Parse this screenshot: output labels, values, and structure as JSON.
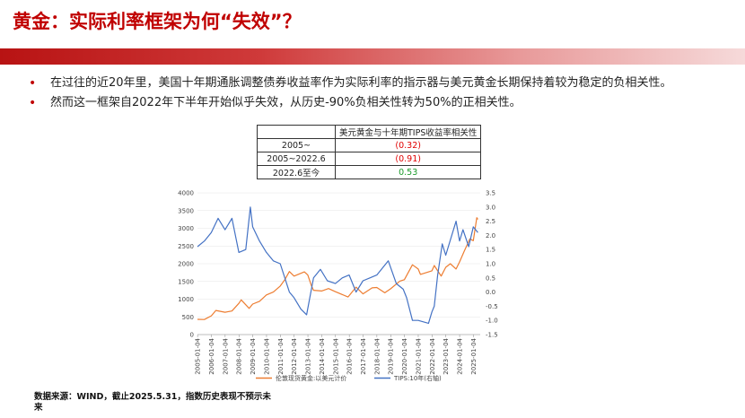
{
  "header": {
    "title": "黄金：实际利率框架为何“失效”？"
  },
  "bullets": [
    "在过往的近20年里，美国十年期通胀调整债券收益率作为实际利率的指示器与美元黄金长期保持着较为稳定的负相关性。",
    "然而这一框架自2022年下半年开始似乎失效，从历史-90%负相关性转为50%的正相关性。"
  ],
  "corr_table": {
    "header": "美元黄金与十年期TIPS收益率相关性",
    "rows": [
      {
        "period": "2005~",
        "value": "(0.32)",
        "sign": "neg"
      },
      {
        "period": "2005~2022.6",
        "value": "(0.91)",
        "sign": "neg"
      },
      {
        "period": "2022.6至今",
        "value": "0.53",
        "sign": "pos"
      }
    ]
  },
  "colors": {
    "accent": "#c00000",
    "gold_line": "#ed7d31",
    "tips_line": "#4472c4"
  },
  "chart_data": {
    "type": "line",
    "xlabel": "",
    "ylabel": "",
    "ylim_left": [
      0,
      4000
    ],
    "ylim_right": [
      -1.5,
      3.5
    ],
    "left_ticks": [
      "4000",
      "3500",
      "3000",
      "2500",
      "2000",
      "1500",
      "1000",
      "500",
      "0"
    ],
    "right_ticks": [
      "3.5",
      "3.0",
      "2.5",
      "2.0",
      "1.5",
      "1.0",
      "0.5",
      "0.0",
      "-0.5",
      "-1.0",
      "-1.5"
    ],
    "x_ticks": [
      "2005-01-04",
      "2006-01-04",
      "2007-01-04",
      "2008-01-04",
      "2009-01-04",
      "2010-01-04",
      "2011-01-04",
      "2012-01-04",
      "2013-01-04",
      "2014-01-04",
      "2015-01-04",
      "2016-01-04",
      "2017-01-04",
      "2018-01-04",
      "2019-01-04",
      "2020-01-04",
      "2021-01-04",
      "2022-01-04",
      "2023-01-04",
      "2024-01-04",
      "2025-01-04"
    ],
    "legend_position": "bottom",
    "series": [
      {
        "name": "伦敦现货黄金:以美元计价",
        "axis": "left",
        "x": [
          "2005-01",
          "2005-07",
          "2006-01",
          "2006-05",
          "2007-01",
          "2007-07",
          "2008-01",
          "2008-03",
          "2008-10",
          "2009-01",
          "2009-07",
          "2010-01",
          "2010-07",
          "2011-01",
          "2011-05",
          "2011-09",
          "2012-01",
          "2012-10",
          "2013-01",
          "2013-04",
          "2013-06",
          "2014-01",
          "2014-07",
          "2015-01",
          "2015-12",
          "2016-07",
          "2017-01",
          "2017-09",
          "2018-01",
          "2018-08",
          "2019-01",
          "2019-09",
          "2020-01",
          "2020-08",
          "2021-01",
          "2021-03",
          "2022-01",
          "2022-03",
          "2022-09",
          "2023-01",
          "2023-05",
          "2023-10",
          "2024-01",
          "2024-05",
          "2024-10",
          "2025-01",
          "2025-04",
          "2025-05"
        ],
        "values": [
          430,
          425,
          530,
          680,
          630,
          665,
          880,
          980,
          740,
          860,
          940,
          1120,
          1200,
          1370,
          1550,
          1780,
          1650,
          1770,
          1680,
          1390,
          1250,
          1230,
          1300,
          1210,
          1060,
          1340,
          1150,
          1320,
          1330,
          1180,
          1290,
          1510,
          1550,
          1970,
          1850,
          1700,
          1800,
          1950,
          1650,
          1900,
          2000,
          1850,
          2050,
          2350,
          2700,
          2650,
          3300,
          3250
        ]
      },
      {
        "name": "TIPS:10年(右轴)",
        "axis": "right",
        "x": [
          "2005-01",
          "2005-07",
          "2006-01",
          "2006-07",
          "2007-01",
          "2007-07",
          "2008-01",
          "2008-07",
          "2008-11",
          "2009-01",
          "2009-07",
          "2010-01",
          "2010-07",
          "2011-01",
          "2011-09",
          "2012-01",
          "2012-07",
          "2012-12",
          "2013-06",
          "2013-12",
          "2014-06",
          "2015-01",
          "2015-07",
          "2016-01",
          "2016-07",
          "2017-01",
          "2017-07",
          "2018-01",
          "2018-11",
          "2019-06",
          "2019-12",
          "2020-03",
          "2020-08",
          "2021-01",
          "2021-10",
          "2022-01",
          "2022-03",
          "2022-06",
          "2022-10",
          "2023-01",
          "2023-10",
          "2024-01",
          "2024-04",
          "2024-09",
          "2025-01",
          "2025-05"
        ],
        "values": [
          1.6,
          1.8,
          2.1,
          2.6,
          2.2,
          2.6,
          1.4,
          1.5,
          3.0,
          2.3,
          1.8,
          1.4,
          1.1,
          1.0,
          0.0,
          -0.2,
          -0.6,
          -0.8,
          0.5,
          0.8,
          0.4,
          0.3,
          0.5,
          0.6,
          0.0,
          0.4,
          0.5,
          0.6,
          1.1,
          0.3,
          0.1,
          -0.2,
          -1.0,
          -1.0,
          -1.1,
          -0.7,
          -0.5,
          0.6,
          1.7,
          1.3,
          2.5,
          1.8,
          2.2,
          1.6,
          2.3,
          2.1
        ]
      }
    ]
  },
  "footer": {
    "source": "数据来源：WIND，截止2025.5.31，指数历史表现不预示未来"
  }
}
